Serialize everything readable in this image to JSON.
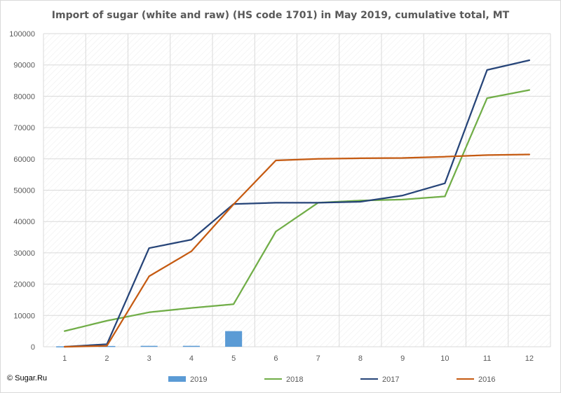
{
  "chart_data": {
    "type": "line",
    "title": "Import of sugar (white and raw) (HS code 1701) in May 2019, cumulative total, MT",
    "credit": "© Sugar.Ru",
    "categories": [
      "1",
      "2",
      "3",
      "4",
      "5",
      "6",
      "7",
      "8",
      "9",
      "10",
      "11",
      "12"
    ],
    "ylim": [
      0,
      100000
    ],
    "yticks": [
      "0",
      "10000",
      "20000",
      "30000",
      "40000",
      "50000",
      "60000",
      "70000",
      "80000",
      "90000",
      "100000"
    ],
    "ytick_values": [
      0,
      10000,
      20000,
      30000,
      40000,
      50000,
      60000,
      70000,
      80000,
      90000,
      100000
    ],
    "grid": true,
    "legend_position": "bottom",
    "series": [
      {
        "name": "2019",
        "kind": "bar",
        "color": "#5b9bd5",
        "values": [
          150,
          250,
          300,
          300,
          5000,
          null,
          null,
          null,
          null,
          null,
          null,
          null
        ]
      },
      {
        "name": "2018",
        "kind": "line",
        "color": "#70ad47",
        "values": [
          5000,
          8300,
          11000,
          12400,
          13600,
          36800,
          46000,
          46700,
          47000,
          48000,
          79400,
          82000
        ]
      },
      {
        "name": "2017",
        "kind": "line",
        "color": "#264478",
        "values": [
          0,
          800,
          31500,
          34200,
          45600,
          46000,
          46000,
          46300,
          48300,
          52200,
          88400,
          91500
        ]
      },
      {
        "name": "2016",
        "kind": "line",
        "color": "#c55a11",
        "values": [
          0,
          300,
          22500,
          30500,
          45500,
          59500,
          60000,
          60200,
          60300,
          60700,
          61200,
          61400
        ]
      }
    ]
  }
}
